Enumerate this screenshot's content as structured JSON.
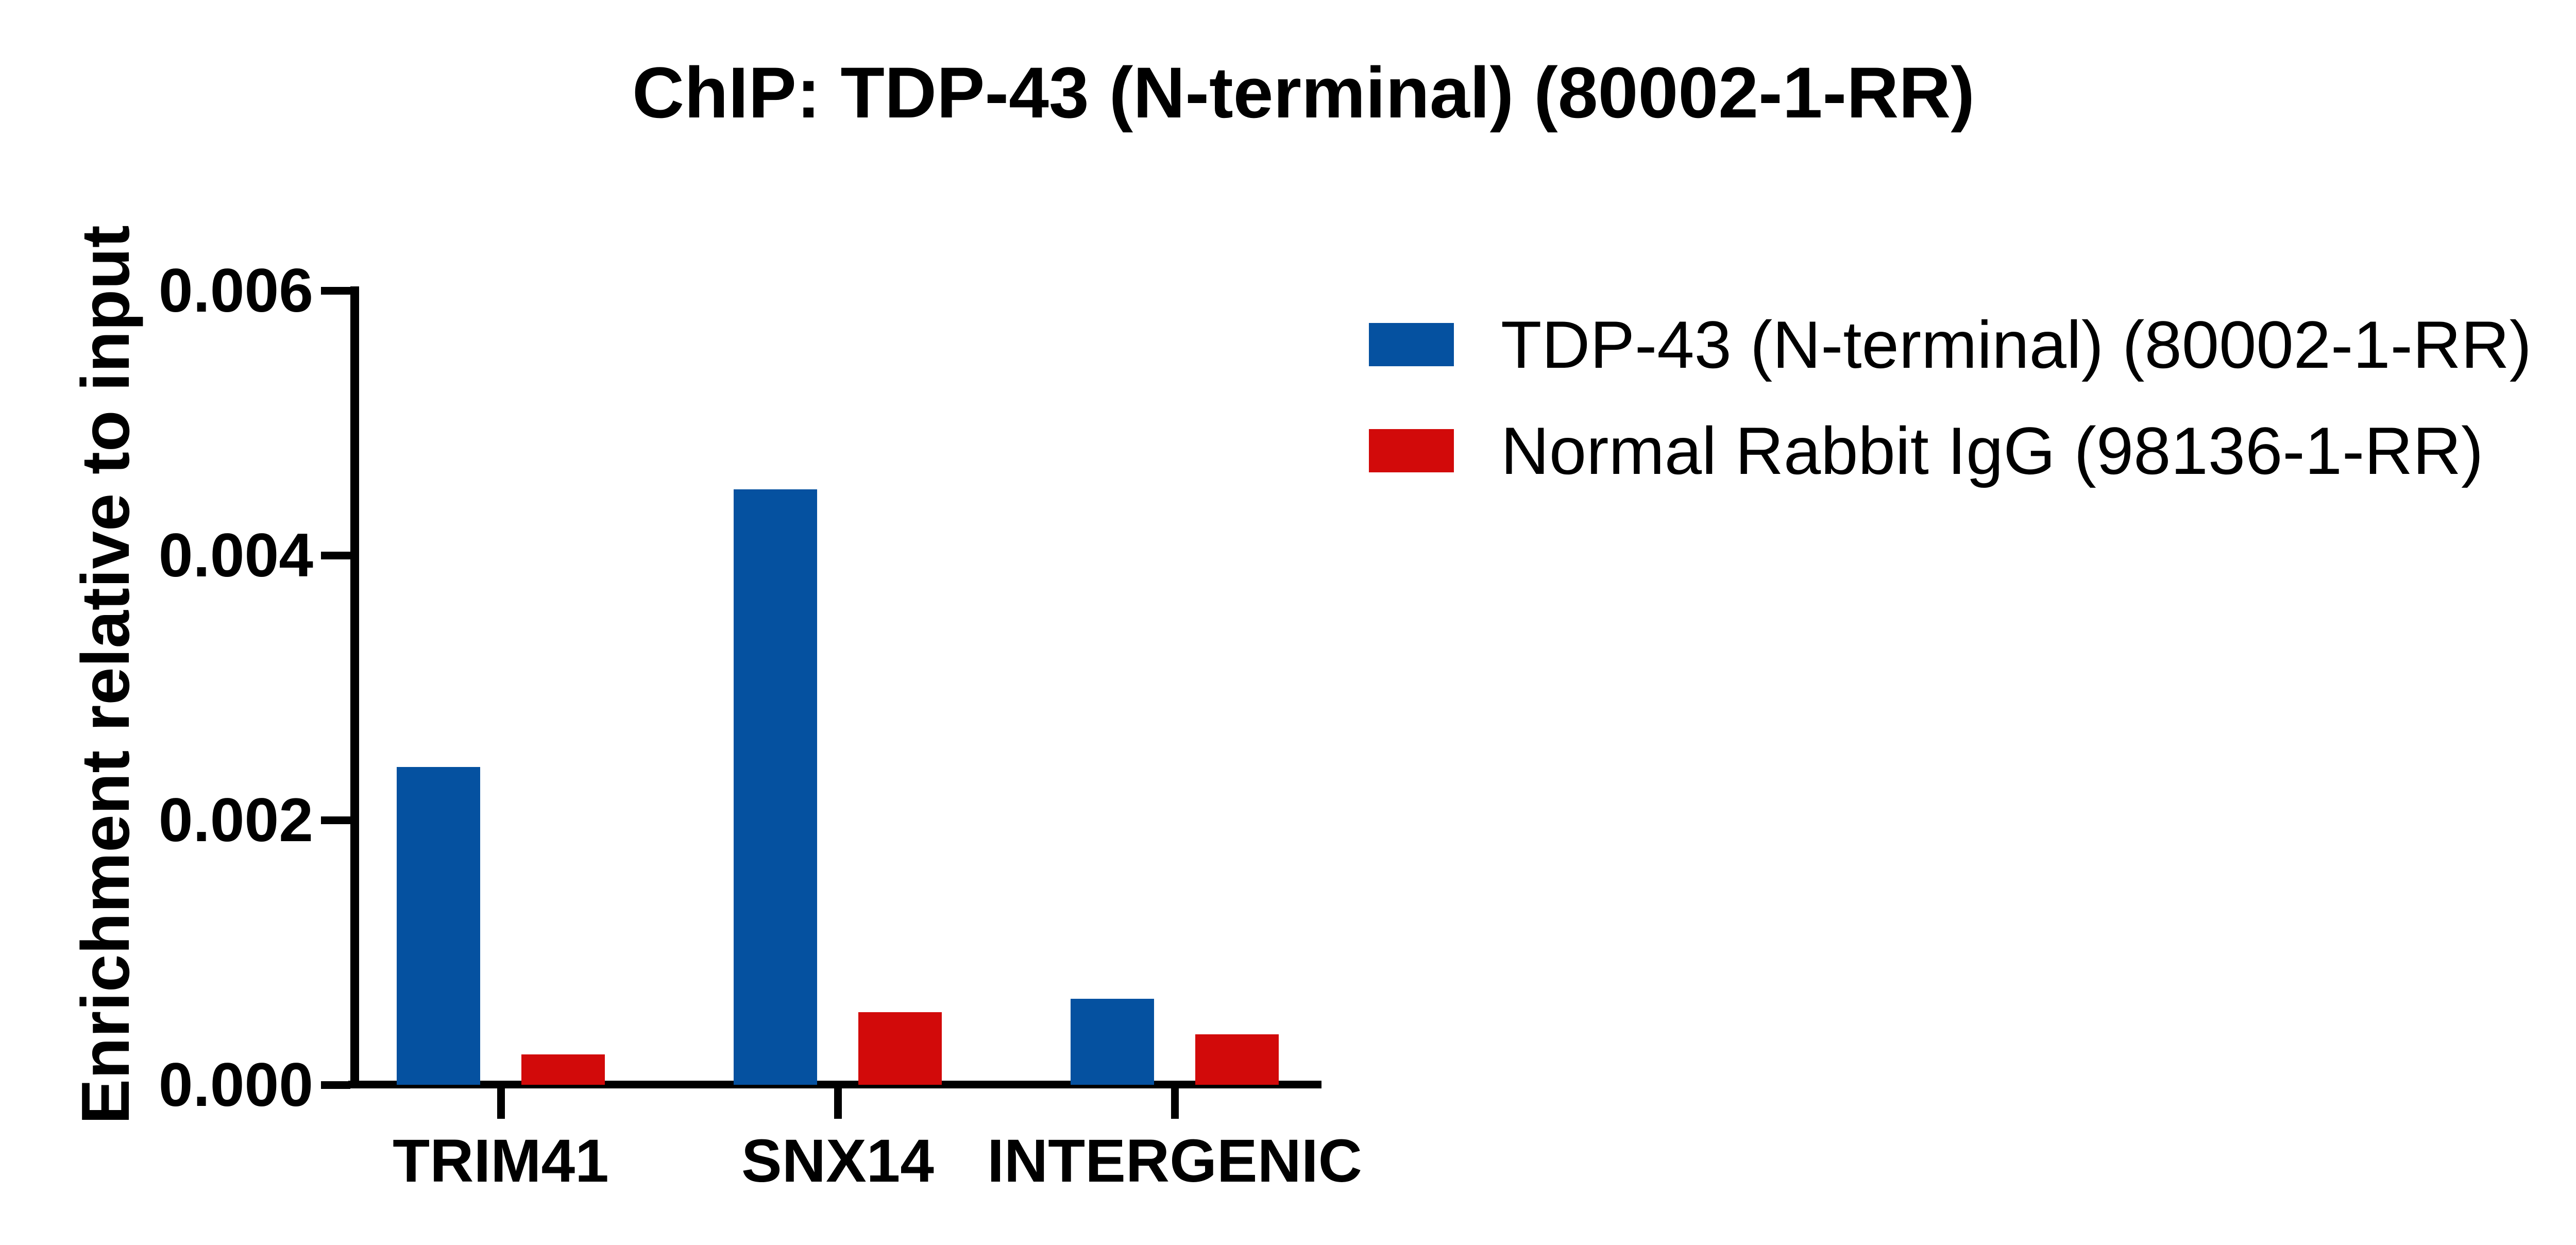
{
  "title": "ChIP: TDP-43 (N-terminal) (80002-1-RR)",
  "y_axis": {
    "label": "Enrichment relative to input",
    "tick_labels": [
      "0.000",
      "0.002",
      "0.004",
      "0.006"
    ]
  },
  "x_axis": {
    "categories": [
      "TRIM41",
      "SNX14",
      "INTERGENIC"
    ]
  },
  "legend": {
    "items": [
      {
        "label": "TDP-43 (N-terminal) (80002-1-RR)",
        "color": "#0551A0"
      },
      {
        "label": "Normal Rabbit IgG (98136-1-RR)",
        "color": "#D20A0A"
      }
    ]
  },
  "chart_data": {
    "type": "bar",
    "title": "ChIP: TDP-43 (N-terminal) (80002-1-RR)",
    "categories": [
      "TRIM41",
      "SNX14",
      "INTERGENIC"
    ],
    "series": [
      {
        "name": "TDP-43 (N-terminal) (80002-1-RR)",
        "color": "#0551A0",
        "values": [
          0.0024,
          0.0045,
          0.00065
        ]
      },
      {
        "name": "Normal Rabbit IgG (98136-1-RR)",
        "color": "#D20A0A",
        "values": [
          0.00023,
          0.00055,
          0.00038
        ]
      }
    ],
    "xlabel": "",
    "ylabel": "Enrichment relative to input",
    "ylim": [
      0,
      0.006
    ],
    "yticks": [
      0,
      0.002,
      0.004,
      0.006
    ],
    "ytick_labels": [
      "0.000",
      "0.002",
      "0.004",
      "0.006"
    ],
    "grid": false,
    "legend_position": "right-top",
    "bar_orientation": "vertical"
  }
}
